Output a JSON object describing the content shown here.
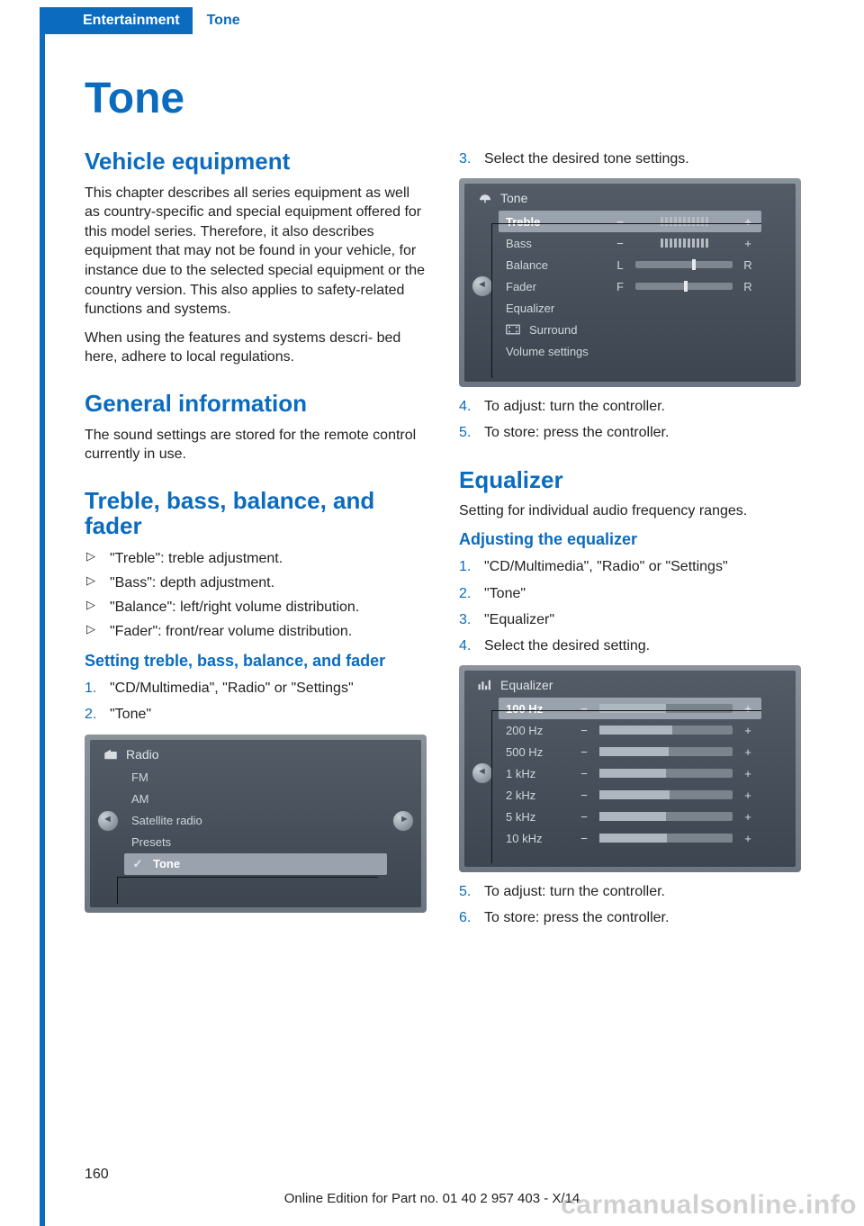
{
  "header": {
    "section": "Entertainment",
    "chapter": "Tone"
  },
  "title": "Tone",
  "left": {
    "vehicle_equipment": {
      "heading": "Vehicle equipment",
      "p1": "This chapter describes all series equipment as well as country-specific and special equipment offered for this model series. Therefore, it also describes equipment that may not be found in your vehicle, for instance due to the selected special equipment or the country version. This also applies to safety-related functions and systems.",
      "p2": "When using the features and systems descri‐ bed here, adhere to local regulations."
    },
    "general_info": {
      "heading": "General information",
      "p1": "The sound settings are stored for the remote control currently in use."
    },
    "tbbf": {
      "heading": "Treble, bass, balance, and fader",
      "bullets": [
        "\"Treble\": treble adjustment.",
        "\"Bass\": depth adjustment.",
        "\"Balance\": left/right volume distribution.",
        "\"Fader\": front/rear volume distribution."
      ],
      "sub_heading": "Setting treble, bass, balance, and fader",
      "steps": [
        "\"CD/Multimedia\", \"Radio\" or \"Settings\"",
        "\"Tone\""
      ]
    },
    "radio_screen": {
      "title": "Radio",
      "rows": [
        "FM",
        "AM",
        "Satellite radio",
        "Presets",
        "Tone"
      ],
      "selected": "Tone"
    }
  },
  "right": {
    "steps_top": [
      {
        "n": "3.",
        "t": "Select the desired tone settings."
      }
    ],
    "tone_screen": {
      "title": "Tone",
      "rows": [
        {
          "label": "Treble",
          "type": "ticks",
          "minus": "−",
          "plus": "+"
        },
        {
          "label": "Bass",
          "type": "ticks",
          "minus": "−",
          "plus": "+"
        },
        {
          "label": "Balance",
          "type": "slider",
          "left": "L",
          "right": "R",
          "pos": 0.58
        },
        {
          "label": "Fader",
          "type": "slider",
          "left": "F",
          "right": "R",
          "pos": 0.5
        },
        {
          "label": "Equalizer",
          "type": "plain"
        },
        {
          "label": "Surround",
          "type": "surround"
        },
        {
          "label": "Volume settings",
          "type": "plain"
        }
      ],
      "selected": "Treble"
    },
    "steps_mid": [
      {
        "n": "4.",
        "t": "To adjust: turn the controller."
      },
      {
        "n": "5.",
        "t": "To store: press the controller."
      }
    ],
    "equalizer": {
      "heading": "Equalizer",
      "p1": "Setting for individual audio frequency ranges.",
      "sub_heading": "Adjusting the equalizer",
      "steps": [
        {
          "n": "1.",
          "t": "\"CD/Multimedia\", \"Radio\" or \"Settings\""
        },
        {
          "n": "2.",
          "t": "\"Tone\""
        },
        {
          "n": "3.",
          "t": "\"Equalizer\""
        },
        {
          "n": "4.",
          "t": "Select the desired setting."
        }
      ]
    },
    "eq_screen": {
      "title": "Equalizer",
      "rows": [
        {
          "label": "100 Hz",
          "fill": 0.5
        },
        {
          "label": "200 Hz",
          "fill": 0.55
        },
        {
          "label": "500 Hz",
          "fill": 0.52
        },
        {
          "label": "1 kHz",
          "fill": 0.5
        },
        {
          "label": "2 kHz",
          "fill": 0.53
        },
        {
          "label": "5 kHz",
          "fill": 0.5
        },
        {
          "label": "10 kHz",
          "fill": 0.51
        }
      ],
      "selected": "100 Hz",
      "minus": "−",
      "plus": "+"
    },
    "steps_bottom": [
      {
        "n": "5.",
        "t": "To adjust: turn the controller."
      },
      {
        "n": "6.",
        "t": "To store: press the controller."
      }
    ]
  },
  "footer": {
    "page_no": "160",
    "line": "Online Edition for Part no. 01 40 2 957 403 - X/14",
    "watermark": "carmanualsonline.info"
  }
}
